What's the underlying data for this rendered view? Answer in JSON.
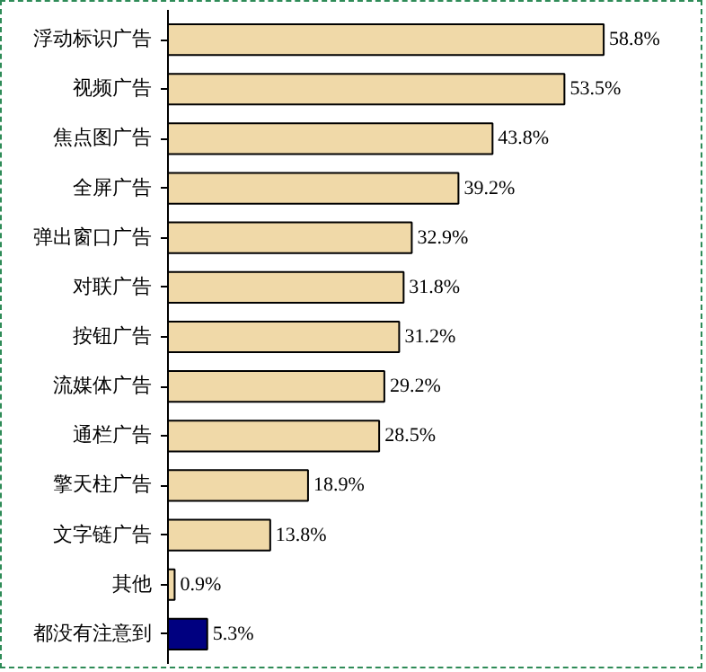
{
  "chart_data": {
    "type": "bar",
    "orientation": "horizontal",
    "categories": [
      "浮动标识广告",
      "视频广告",
      "焦点图广告",
      "全屏广告",
      "弹出窗口广告",
      "对联广告",
      "按钮广告",
      "流媒体广告",
      "通栏广告",
      "擎天柱广告",
      "文字链广告",
      "其他",
      "都没有注意到"
    ],
    "values": [
      58.8,
      53.5,
      43.8,
      39.2,
      32.9,
      31.8,
      31.2,
      29.2,
      28.5,
      18.9,
      13.8,
      0.9,
      5.3
    ],
    "colors": [
      "#f0d9a8",
      "#f0d9a8",
      "#f0d9a8",
      "#f0d9a8",
      "#f0d9a8",
      "#f0d9a8",
      "#f0d9a8",
      "#f0d9a8",
      "#f0d9a8",
      "#f0d9a8",
      "#f0d9a8",
      "#f0d9a8",
      "#000080"
    ],
    "value_labels": [
      "58.8%",
      "53.5%",
      "43.8%",
      "39.2%",
      "32.9%",
      "31.8%",
      "31.2%",
      "29.2%",
      "28.5%",
      "18.9%",
      "13.8%",
      "0.9%",
      "5.3%"
    ],
    "xlim": [
      0,
      72
    ],
    "grid": false,
    "tick_labels": "y"
  }
}
